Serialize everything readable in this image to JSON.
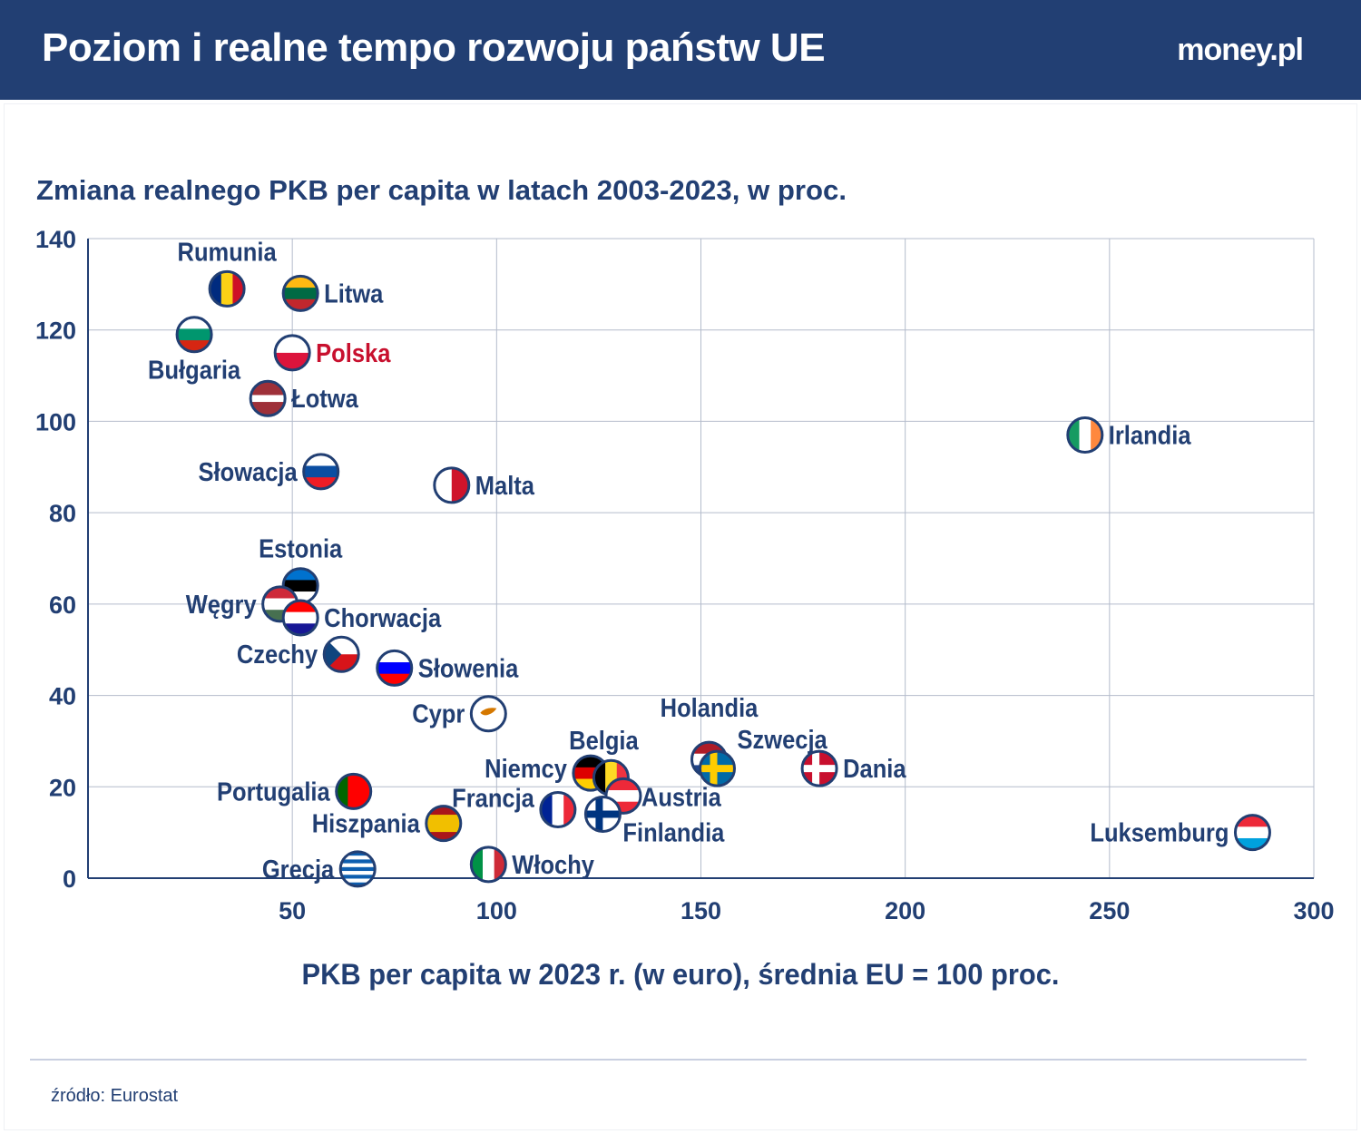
{
  "header": {
    "title": "Poziom i realne tempo rozwoju państw UE",
    "logo": "money.pl"
  },
  "source": "źródło: Eurostat",
  "colors": {
    "header_bg": "#223f73",
    "text": "#223f73",
    "highlight": "#c8102e",
    "grid": "#b4bccc"
  },
  "chart_data": {
    "type": "scatter",
    "title": "Zmiana realnego PKB per capita w latach 2003-2023, w proc.",
    "xlabel": "PKB per capita w 2023 r. (w euro), średnia EU = 100 proc.",
    "ylabel": "",
    "xlim": [
      0,
      300
    ],
    "ylim": [
      0,
      140
    ],
    "xticks": [
      50,
      100,
      150,
      200,
      250,
      300
    ],
    "yticks": [
      0,
      20,
      40,
      60,
      80,
      100,
      120,
      140
    ],
    "grid": true,
    "marker": "country-flag-circle",
    "points": [
      {
        "label": "Rumunia",
        "x": 34,
        "y": 129,
        "label_side": "top",
        "flag": {
          "type": "v",
          "colors": [
            "#002B7F",
            "#FCD116",
            "#CE1126"
          ]
        }
      },
      {
        "label": "Litwa",
        "x": 52,
        "y": 128,
        "label_side": "right",
        "flag": {
          "type": "h",
          "colors": [
            "#FDB913",
            "#006A44",
            "#C1272D"
          ]
        }
      },
      {
        "label": "Bułgaria",
        "x": 26,
        "y": 119,
        "label_side": "bottom",
        "flag": {
          "type": "h",
          "colors": [
            "#FFFFFF",
            "#00966E",
            "#D62612"
          ]
        }
      },
      {
        "label": "Polska",
        "x": 50,
        "y": 115,
        "label_side": "right",
        "highlight": true,
        "flag": {
          "type": "h",
          "colors": [
            "#FFFFFF",
            "#DC143C"
          ]
        }
      },
      {
        "label": "Łotwa",
        "x": 44,
        "y": 105,
        "label_side": "right",
        "flag": {
          "type": "h",
          "colors": [
            "#9E3039",
            "#9E3039",
            "#FFFFFF",
            "#9E3039",
            "#9E3039"
          ]
        }
      },
      {
        "label": "Słowacja",
        "x": 57,
        "y": 89,
        "label_side": "left",
        "flag": {
          "type": "h",
          "colors": [
            "#FFFFFF",
            "#0B4EA2",
            "#EE1C25"
          ]
        }
      },
      {
        "label": "Malta",
        "x": 89,
        "y": 86,
        "label_side": "right",
        "flag": {
          "type": "v",
          "colors": [
            "#FFFFFF",
            "#CF142B"
          ]
        }
      },
      {
        "label": "Irlandia",
        "x": 244,
        "y": 97,
        "label_side": "right",
        "flag": {
          "type": "v",
          "colors": [
            "#169B62",
            "#FFFFFF",
            "#FF883E"
          ]
        }
      },
      {
        "label": "Estonia",
        "x": 52,
        "y": 64,
        "label_side": "top",
        "flag": {
          "type": "h",
          "colors": [
            "#0072CE",
            "#000000",
            "#FFFFFF"
          ]
        }
      },
      {
        "label": "Węgry",
        "x": 47,
        "y": 60,
        "label_side": "left",
        "flag": {
          "type": "h",
          "colors": [
            "#CE2939",
            "#FFFFFF",
            "#477050"
          ]
        }
      },
      {
        "label": "Chorwacja",
        "x": 52,
        "y": 57,
        "label_side": "right",
        "flag": {
          "type": "h",
          "colors": [
            "#FF0000",
            "#FFFFFF",
            "#171796"
          ]
        }
      },
      {
        "label": "Czechy",
        "x": 62,
        "y": 49,
        "label_side": "left",
        "flag": {
          "type": "czech",
          "colors": [
            "#FFFFFF",
            "#D7141A",
            "#11457E"
          ]
        }
      },
      {
        "label": "Słowenia",
        "x": 75,
        "y": 46,
        "label_side": "right",
        "flag": {
          "type": "h",
          "colors": [
            "#FFFFFF",
            "#0000FF",
            "#FF0000"
          ]
        }
      },
      {
        "label": "Cypr",
        "x": 98,
        "y": 36,
        "label_side": "left",
        "flag": {
          "type": "cyprus",
          "colors": [
            "#FFFFFF",
            "#D57800"
          ]
        }
      },
      {
        "label": "Holandia",
        "x": 152,
        "y": 26,
        "label_side": "top",
        "flag": {
          "type": "h",
          "colors": [
            "#AE1C28",
            "#FFFFFF",
            "#21468B"
          ]
        }
      },
      {
        "label": "Szwecja",
        "x": 154,
        "y": 24,
        "label_side": "top-right",
        "flag": {
          "type": "cross",
          "colors": [
            "#006AA7",
            "#FECC00"
          ]
        }
      },
      {
        "label": "Dania",
        "x": 179,
        "y": 24,
        "label_side": "right",
        "flag": {
          "type": "cross",
          "colors": [
            "#C8102E",
            "#FFFFFF"
          ]
        }
      },
      {
        "label": "Niemcy",
        "x": 123,
        "y": 23,
        "label_side": "left",
        "flag": {
          "type": "h",
          "colors": [
            "#000000",
            "#DD0000",
            "#FFCE00"
          ]
        }
      },
      {
        "label": "Belgia",
        "x": 128,
        "y": 22,
        "label_side": "top",
        "flag": {
          "type": "v",
          "colors": [
            "#000000",
            "#FDDA24",
            "#EF3340"
          ]
        }
      },
      {
        "label": "Austria",
        "x": 131,
        "y": 18,
        "label_side": "bottom-right",
        "flag": {
          "type": "h",
          "colors": [
            "#ED2939",
            "#FFFFFF",
            "#ED2939"
          ]
        }
      },
      {
        "label": "Francja",
        "x": 115,
        "y": 15,
        "label_side": "top-left",
        "flag": {
          "type": "v",
          "colors": [
            "#002395",
            "#FFFFFF",
            "#ED2939"
          ]
        }
      },
      {
        "label": "Finlandia",
        "x": 126,
        "y": 14,
        "label_side": "bottom-right",
        "flag": {
          "type": "cross",
          "colors": [
            "#FFFFFF",
            "#003580"
          ]
        }
      },
      {
        "label": "Portugalia",
        "x": 65,
        "y": 19,
        "label_side": "left",
        "flag": {
          "type": "v",
          "colors": [
            "#006600",
            "#FF0000",
            "#FF0000"
          ]
        }
      },
      {
        "label": "Hiszpania",
        "x": 87,
        "y": 12,
        "label_side": "left",
        "flag": {
          "type": "h",
          "colors": [
            "#AA151B",
            "#F1BF00",
            "#F1BF00",
            "#AA151B"
          ]
        }
      },
      {
        "label": "Grecja",
        "x": 66,
        "y": 2,
        "label_side": "left",
        "flag": {
          "type": "h",
          "colors": [
            "#0D5EAF",
            "#FFFFFF",
            "#0D5EAF",
            "#FFFFFF",
            "#0D5EAF",
            "#FFFFFF",
            "#0D5EAF",
            "#FFFFFF",
            "#0D5EAF"
          ]
        }
      },
      {
        "label": "Włochy",
        "x": 98,
        "y": 3,
        "label_side": "right",
        "flag": {
          "type": "v",
          "colors": [
            "#009246",
            "#FFFFFF",
            "#CE2B37"
          ]
        }
      },
      {
        "label": "Luksemburg",
        "x": 285,
        "y": 10,
        "label_side": "left",
        "flag": {
          "type": "h",
          "colors": [
            "#ED2939",
            "#FFFFFF",
            "#00A1DE"
          ]
        }
      }
    ]
  }
}
